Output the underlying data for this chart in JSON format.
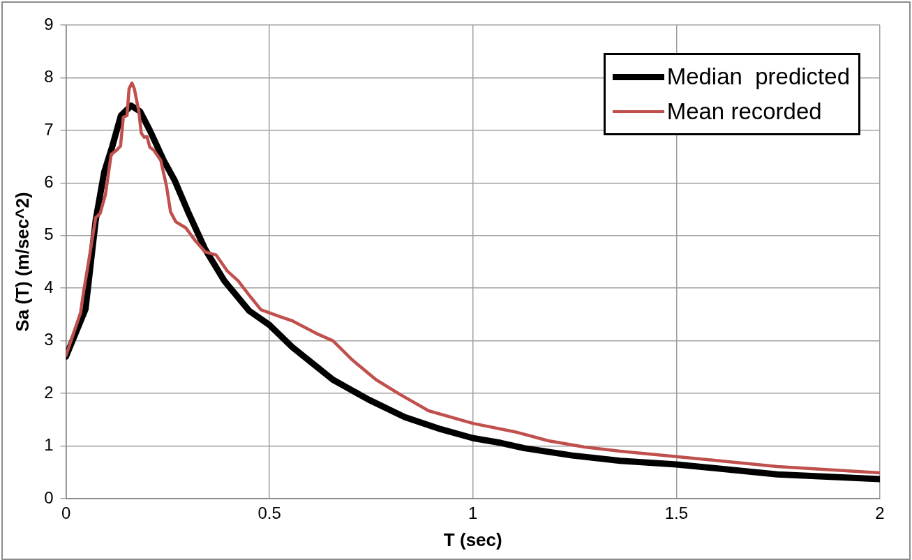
{
  "chart_data": {
    "type": "line",
    "xlabel": "T (sec)",
    "ylabel": "Sa (T) (m/sec^2)",
    "xlim": [
      0,
      2
    ],
    "xticks": [
      0,
      0.5,
      1,
      1.5,
      2
    ],
    "ylim": [
      0,
      9
    ],
    "yticks": [
      0,
      1,
      2,
      3,
      4,
      5,
      6,
      7,
      8,
      9
    ],
    "grid": true,
    "legend": "top right",
    "marker": "none",
    "line_style": "solid",
    "series": [
      {
        "name": "Median  predicted",
        "color": "#000000",
        "x": [
          0,
          0.048,
          0.073,
          0.094,
          0.114,
          0.135,
          0.16,
          0.182,
          0.206,
          0.24,
          0.267,
          0.3,
          0.342,
          0.389,
          0.45,
          0.5,
          0.556,
          0.656,
          0.744,
          0.832,
          0.921,
          1.0,
          1.068,
          1.126,
          1.244,
          1.362,
          1.5,
          1.748,
          2.0
        ],
        "values": [
          2.7,
          3.6,
          5.29,
          6.21,
          6.7,
          7.28,
          7.47,
          7.36,
          7.0,
          6.43,
          6.05,
          5.45,
          4.74,
          4.14,
          3.57,
          3.3,
          2.88,
          2.26,
          1.88,
          1.55,
          1.32,
          1.15,
          1.06,
          0.96,
          0.82,
          0.72,
          0.65,
          0.46,
          0.37
        ]
      },
      {
        "name": "Mean recorded",
        "color": "#c0504d",
        "x": [
          0,
          0.036,
          0.043,
          0.056,
          0.073,
          0.084,
          0.097,
          0.111,
          0.124,
          0.134,
          0.141,
          0.15,
          0.155,
          0.162,
          0.168,
          0.179,
          0.185,
          0.192,
          0.199,
          0.206,
          0.216,
          0.233,
          0.247,
          0.257,
          0.27,
          0.294,
          0.318,
          0.342,
          0.369,
          0.396,
          0.423,
          0.45,
          0.479,
          0.525,
          0.556,
          0.615,
          0.656,
          0.703,
          0.762,
          0.821,
          0.891,
          1.0,
          1.103,
          1.185,
          1.274,
          1.362,
          1.5,
          1.748,
          2.0
        ],
        "values": [
          2.72,
          3.54,
          3.92,
          4.52,
          5.34,
          5.42,
          5.78,
          6.54,
          6.62,
          6.7,
          7.25,
          7.28,
          7.79,
          7.9,
          7.79,
          7.36,
          6.95,
          6.87,
          6.88,
          6.68,
          6.62,
          6.43,
          5.94,
          5.45,
          5.26,
          5.15,
          4.9,
          4.69,
          4.63,
          4.33,
          4.14,
          3.87,
          3.59,
          3.46,
          3.38,
          3.14,
          3.0,
          2.64,
          2.26,
          1.98,
          1.67,
          1.43,
          1.27,
          1.1,
          0.98,
          0.9,
          0.8,
          0.61,
          0.49
        ]
      }
    ]
  }
}
